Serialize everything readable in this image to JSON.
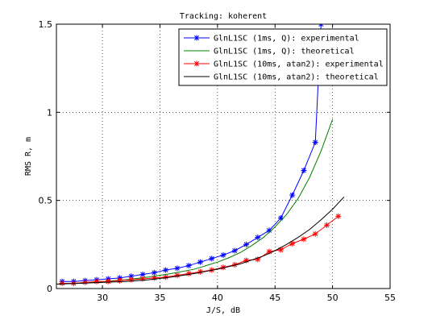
{
  "chart_data": {
    "type": "line",
    "title": "Tracking: koherent",
    "xlabel": "J/S, dB",
    "ylabel": "RMS R, m",
    "xlim": [
      26,
      55
    ],
    "ylim": [
      0,
      1.5
    ],
    "xticks": [
      30,
      35,
      40,
      45,
      50,
      55
    ],
    "yticks": [
      0,
      0.5,
      1,
      1.5
    ],
    "xtick_labels": [
      "30",
      "35",
      "40",
      "45",
      "50",
      "55"
    ],
    "ytick_labels": [
      "0",
      "0.5",
      "1",
      "1.5"
    ],
    "grid": true,
    "legend_position": "top-right",
    "series": [
      {
        "name": "GlnL1SC (1ms, Q): experimental",
        "color": "#0000ff",
        "marker": "star",
        "line": "solid",
        "x": [
          26.5,
          27.5,
          28.5,
          29.5,
          30.5,
          31.5,
          32.5,
          33.5,
          34.5,
          35.5,
          36.5,
          37.5,
          38.5,
          39.5,
          40.5,
          41.5,
          42.5,
          43.5,
          44.5,
          45.5,
          46.5,
          47.5,
          48.5,
          49.0
        ],
        "y": [
          0.04,
          0.04,
          0.045,
          0.05,
          0.055,
          0.06,
          0.07,
          0.08,
          0.09,
          0.105,
          0.115,
          0.13,
          0.15,
          0.17,
          0.19,
          0.215,
          0.25,
          0.29,
          0.33,
          0.4,
          0.53,
          0.67,
          0.83,
          1.5
        ]
      },
      {
        "name": "GlnL1SC (1ms, Q): theoretical",
        "color": "#008000",
        "marker": "none",
        "line": "solid",
        "x": [
          26,
          28,
          30,
          32,
          34,
          36,
          38,
          40,
          41,
          42,
          43,
          44,
          45,
          46,
          47,
          48,
          49,
          50
        ],
        "y": [
          0.025,
          0.03,
          0.04,
          0.05,
          0.065,
          0.085,
          0.11,
          0.15,
          0.175,
          0.205,
          0.245,
          0.29,
          0.35,
          0.42,
          0.51,
          0.63,
          0.78,
          0.96
        ]
      },
      {
        "name": "GlnL1SC (10ms, atan2): experimental",
        "color": "#ff0000",
        "marker": "star",
        "line": "solid",
        "x": [
          26.5,
          27.5,
          28.5,
          29.5,
          30.5,
          31.5,
          32.5,
          33.5,
          34.5,
          35.5,
          36.5,
          37.5,
          38.5,
          39.5,
          40.5,
          41.5,
          42.5,
          43.5,
          44.5,
          45.5,
          46.5,
          47.5,
          48.5,
          49.5,
          50.5
        ],
        "y": [
          0.03,
          0.03,
          0.035,
          0.04,
          0.04,
          0.045,
          0.05,
          0.055,
          0.06,
          0.065,
          0.075,
          0.085,
          0.095,
          0.105,
          0.12,
          0.135,
          0.16,
          0.165,
          0.21,
          0.22,
          0.255,
          0.28,
          0.31,
          0.36,
          0.41
        ]
      },
      {
        "name": "GlnL1SC (10ms, atan2): theoretical",
        "color": "#000000",
        "marker": "none",
        "line": "solid",
        "x": [
          26,
          28,
          30,
          32,
          34,
          36,
          38,
          40,
          42,
          44,
          45,
          46,
          47,
          48,
          49,
          50,
          51
        ],
        "y": [
          0.025,
          0.03,
          0.035,
          0.04,
          0.05,
          0.065,
          0.085,
          0.11,
          0.14,
          0.185,
          0.215,
          0.25,
          0.29,
          0.335,
          0.39,
          0.45,
          0.52
        ]
      }
    ]
  }
}
